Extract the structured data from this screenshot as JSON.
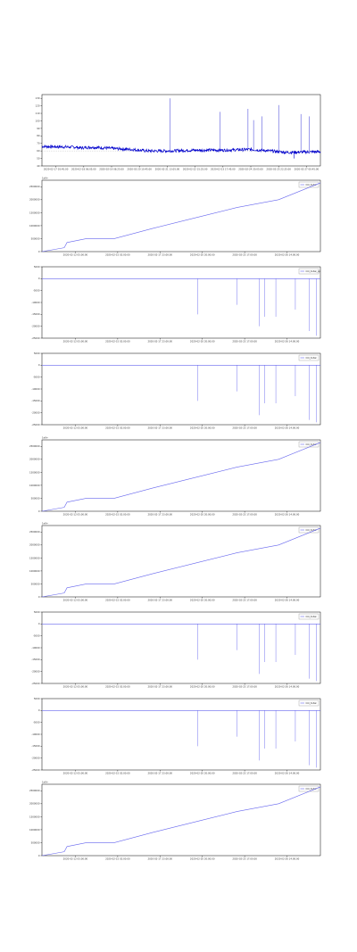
{
  "chart_data": [
    {
      "type": "line",
      "x_tick_labels": [
        "2020-02-17 03:45:00",
        "2020-02-18 06:05:00",
        "2020-02-19 08:25:00",
        "2020-02-20 10:45:00",
        "2020-02-21 13:05:00",
        "2020-02-22 15:25:00",
        "2020-02-23 17:45:00",
        "2020-02-24 20:05:00",
        "2020-02-25 22:25:00",
        "2020-02-27 00:45:00"
      ],
      "y_tick_labels": [
        "40",
        "50",
        "60",
        "70",
        "80",
        "90",
        "100",
        "110",
        "120",
        "130"
      ],
      "ylim": [
        40,
        135
      ],
      "legend": [],
      "offset_label": "",
      "series": [
        {
          "kind": "noisy_baseline",
          "baseline": [
            [
              0,
              66
            ],
            [
              0.12,
              65
            ],
            [
              0.14,
              64
            ],
            [
              0.18,
              65
            ],
            [
              0.27,
              63
            ],
            [
              0.32,
              62
            ],
            [
              0.38,
              60
            ],
            [
              0.45,
              60
            ],
            [
              0.55,
              61
            ],
            [
              0.65,
              61
            ],
            [
              0.75,
              62
            ],
            [
              0.82,
              60
            ],
            [
              0.88,
              58
            ],
            [
              1,
              59
            ]
          ],
          "spikes": [
            [
              0.46,
              130
            ],
            [
              0.64,
              112
            ],
            [
              0.74,
              116
            ],
            [
              0.76,
              101
            ],
            [
              0.79,
              106
            ],
            [
              0.85,
              121
            ],
            [
              0.93,
              109
            ],
            [
              0.96,
              106
            ]
          ],
          "dips": [
            [
              0.905,
              50
            ]
          ]
        }
      ],
      "colors": {
        "line": "#0000cc"
      }
    },
    {
      "type": "line",
      "x_tick_labels": [
        "2020-02-12 05:00:00",
        "2020-02-15 02:00:00",
        "2020-02-17 23:00:00",
        "2020-02-20 20:00:00",
        "2020-02-23 17:00:00",
        "2020-02-26 14:00:00"
      ],
      "y_tick_labels": [
        "0",
        "500000",
        "1000000",
        "1500000",
        "2000000",
        "2500000"
      ],
      "ylim": [
        0,
        2750000
      ],
      "legend": [
        "CO_total"
      ],
      "offset_label": "1e9+",
      "series": [
        {
          "kind": "steps",
          "points": [
            [
              0,
              0
            ],
            [
              0.08,
              150000
            ],
            [
              0.09,
              350000
            ],
            [
              0.16,
              500000
            ],
            [
              0.26,
              500000
            ],
            [
              0.4,
              900000
            ],
            [
              0.55,
              1300000
            ],
            [
              0.7,
              1700000
            ],
            [
              0.85,
              2000000
            ],
            [
              1,
              2650000
            ]
          ]
        }
      ],
      "colors": {
        "line": "#6666ee"
      }
    },
    {
      "type": "line",
      "x_tick_labels": [
        "2020-02-12 05:00:00",
        "2020-02-15 02:00:00",
        "2020-02-17 23:00:00",
        "2020-02-20 20:00:00",
        "2020-02-23 17:00:00",
        "2020-02-26 14:00:00"
      ],
      "y_tick_labels": [
        "-25000",
        "-20000",
        "-15000",
        "-10000",
        "-5000",
        "0",
        "5000"
      ],
      "ylim": [
        -25000,
        5000
      ],
      "legend": [
        "CO_total_cp"
      ],
      "offset_label": "",
      "series": [
        {
          "kind": "flat_with_drops",
          "baseline": 0,
          "drops": [
            [
              0.56,
              -15000
            ],
            [
              0.7,
              -11000
            ],
            [
              0.78,
              -20000
            ],
            [
              0.8,
              -16000
            ],
            [
              0.84,
              -16000
            ],
            [
              0.91,
              -13000
            ],
            [
              0.96,
              -22000
            ],
            [
              0.985,
              -24000
            ]
          ]
        }
      ],
      "colors": {
        "line": "#6666ee"
      }
    },
    {
      "type": "line",
      "x_tick_labels": [
        "2020-02-12 05:00:00",
        "2020-02-15 02:00:00",
        "2020-02-17 23:00:00",
        "2020-02-20 20:00:00",
        "2020-02-23 17:00:00",
        "2020-02-26 14:00:00"
      ],
      "y_tick_labels": [
        "-25000",
        "-20000",
        "-15000",
        "-10000",
        "-5000",
        "0",
        "5000"
      ],
      "ylim": [
        -25000,
        5000
      ],
      "legend": [
        "CO_total"
      ],
      "offset_label": "",
      "series": [
        {
          "kind": "flat_with_drops",
          "baseline": 0,
          "drops": [
            [
              0.56,
              -15000
            ],
            [
              0.7,
              -11000
            ],
            [
              0.78,
              -21000
            ],
            [
              0.8,
              -16000
            ],
            [
              0.84,
              -16000
            ],
            [
              0.91,
              -13000
            ],
            [
              0.96,
              -23000
            ],
            [
              0.985,
              -24000
            ]
          ]
        }
      ],
      "colors": {
        "line": "#6666ee"
      }
    },
    {
      "type": "line",
      "x_tick_labels": [
        "2020-02-12 05:00:00",
        "2020-02-15 02:00:00",
        "2020-02-17 23:00:00",
        "2020-02-20 20:00:00",
        "2020-02-23 17:00:00",
        "2020-02-26 14:00:00"
      ],
      "y_tick_labels": [
        "0",
        "500000",
        "1000000",
        "1500000",
        "2000000",
        "2500000"
      ],
      "ylim": [
        0,
        2750000
      ],
      "legend": [
        "CO_total"
      ],
      "offset_label": "1e9+",
      "series": [
        {
          "kind": "steps",
          "points": [
            [
              0,
              0
            ],
            [
              0.08,
              150000
            ],
            [
              0.09,
              350000
            ],
            [
              0.16,
              500000
            ],
            [
              0.26,
              500000
            ],
            [
              0.4,
              900000
            ],
            [
              0.55,
              1300000
            ],
            [
              0.7,
              1700000
            ],
            [
              0.85,
              2000000
            ],
            [
              1,
              2650000
            ]
          ]
        }
      ],
      "colors": {
        "line": "#6666ee"
      }
    },
    {
      "type": "line",
      "x_tick_labels": [
        "2020-02-12 05:00:00",
        "2020-02-15 02:00:00",
        "2020-02-17 23:00:00",
        "2020-02-20 20:00:00",
        "2020-02-23 17:00:00",
        "2020-02-26 14:00:00"
      ],
      "y_tick_labels": [
        "0",
        "500000",
        "1000000",
        "1500000",
        "2000000",
        "2500000"
      ],
      "ylim": [
        0,
        2750000
      ],
      "legend": [
        "CO_total"
      ],
      "offset_label": "1e9+",
      "series": [
        {
          "kind": "steps",
          "points": [
            [
              0,
              0
            ],
            [
              0.08,
              150000
            ],
            [
              0.09,
              350000
            ],
            [
              0.16,
              500000
            ],
            [
              0.26,
              500000
            ],
            [
              0.4,
              900000
            ],
            [
              0.55,
              1300000
            ],
            [
              0.7,
              1700000
            ],
            [
              0.85,
              2000000
            ],
            [
              1,
              2650000
            ]
          ]
        }
      ],
      "colors": {
        "line": "#6666ee"
      }
    },
    {
      "type": "line",
      "x_tick_labels": [
        "2020-02-12 05:00:00",
        "2020-02-15 02:00:00",
        "2020-02-17 23:00:00",
        "2020-02-20 20:00:00",
        "2020-02-23 17:00:00",
        "2020-02-26 14:00:00"
      ],
      "y_tick_labels": [
        "-25000",
        "-20000",
        "-15000",
        "-10000",
        "-5000",
        "0",
        "5000"
      ],
      "ylim": [
        -25000,
        5000
      ],
      "legend": [
        "CO_total"
      ],
      "offset_label": "",
      "series": [
        {
          "kind": "flat_with_drops",
          "baseline": 0,
          "drops": [
            [
              0.56,
              -15000
            ],
            [
              0.7,
              -11000
            ],
            [
              0.78,
              -21000
            ],
            [
              0.8,
              -16000
            ],
            [
              0.84,
              -16000
            ],
            [
              0.91,
              -13000
            ],
            [
              0.96,
              -23000
            ],
            [
              0.985,
              -24000
            ]
          ]
        }
      ],
      "colors": {
        "line": "#6666ee"
      }
    },
    {
      "type": "line",
      "x_tick_labels": [
        "2020-02-12 05:00:00",
        "2020-02-15 02:00:00",
        "2020-02-17 23:00:00",
        "2020-02-20 20:00:00",
        "2020-02-23 17:00:00",
        "2020-02-26 14:00:00"
      ],
      "y_tick_labels": [
        "-25000",
        "-20000",
        "-15000",
        "-10000",
        "-5000",
        "0",
        "5000"
      ],
      "ylim": [
        -25000,
        5000
      ],
      "legend": [
        "CO_total"
      ],
      "offset_label": "",
      "series": [
        {
          "kind": "flat_with_drops",
          "baseline": 0,
          "drops": [
            [
              0.56,
              -15000
            ],
            [
              0.7,
              -11000
            ],
            [
              0.78,
              -21000
            ],
            [
              0.8,
              -16000
            ],
            [
              0.84,
              -16000
            ],
            [
              0.91,
              -13000
            ],
            [
              0.96,
              -23000
            ],
            [
              0.985,
              -24000
            ]
          ]
        }
      ],
      "colors": {
        "line": "#6666ee"
      }
    },
    {
      "type": "line",
      "x_tick_labels": [
        "2020-02-12 05:00:00",
        "2020-02-15 02:00:00",
        "2020-02-17 23:00:00",
        "2020-02-20 20:00:00",
        "2020-02-23 17:00:00",
        "2020-02-26 14:00:00"
      ],
      "y_tick_labels": [
        "0",
        "500000",
        "1000000",
        "1500000",
        "2000000",
        "2500000"
      ],
      "ylim": [
        0,
        2750000
      ],
      "legend": [
        "CO_total"
      ],
      "offset_label": "1e9+",
      "series": [
        {
          "kind": "steps",
          "points": [
            [
              0,
              0
            ],
            [
              0.08,
              150000
            ],
            [
              0.09,
              350000
            ],
            [
              0.16,
              500000
            ],
            [
              0.26,
              500000
            ],
            [
              0.4,
              900000
            ],
            [
              0.55,
              1300000
            ],
            [
              0.7,
              1700000
            ],
            [
              0.85,
              2000000
            ],
            [
              1,
              2650000
            ]
          ]
        }
      ],
      "colors": {
        "line": "#6666ee"
      }
    }
  ]
}
